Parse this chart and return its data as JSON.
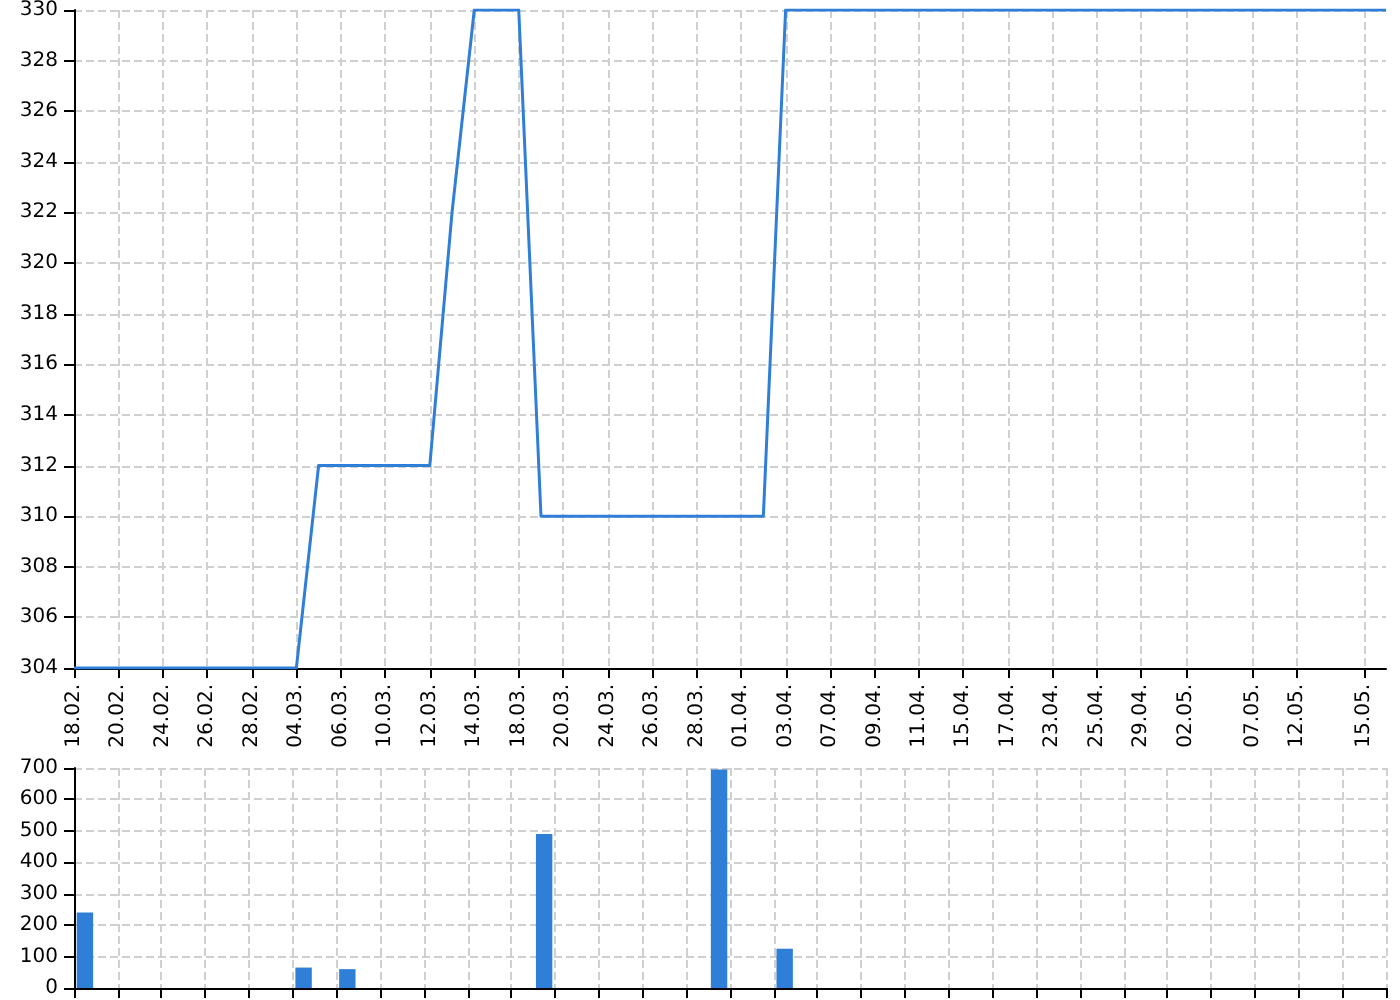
{
  "chart_data": [
    {
      "type": "line",
      "categories": [
        "18.02.",
        null,
        "20.02.",
        null,
        "24.02.",
        null,
        "26.02.",
        null,
        "28.02.",
        null,
        "04.03.",
        null,
        "06.03.",
        null,
        "10.03.",
        null,
        "12.03.",
        null,
        "14.03.",
        null,
        "18.03.",
        null,
        "20.03.",
        null,
        "24.03.",
        null,
        "26.03.",
        null,
        "28.03.",
        null,
        "01.04.",
        null,
        "03.04.",
        null,
        "07.04.",
        null,
        "09.04.",
        null,
        "11.04.",
        null,
        "15.04.",
        null,
        "17.04.",
        null,
        "23.04.",
        null,
        "25.04.",
        null,
        "29.04.",
        null,
        "02.05.",
        null,
        null,
        "07.05.",
        null,
        "12.05.",
        null,
        null,
        "15.05.",
        null
      ],
      "series": [
        {
          "color": "#2f7ed8",
          "values": [
            304,
            304,
            304,
            304,
            304,
            304,
            304,
            304,
            304,
            304,
            304,
            312,
            312,
            312,
            312,
            312,
            312,
            322,
            330,
            330,
            330,
            310,
            310,
            310,
            310,
            310,
            310,
            310,
            310,
            310,
            310,
            310,
            330,
            330,
            330,
            330,
            330,
            330,
            330,
            330,
            330,
            330,
            330,
            330,
            330,
            330,
            330,
            330,
            330,
            330,
            330,
            330,
            330,
            330,
            330,
            330,
            330,
            330,
            330,
            330
          ]
        }
      ],
      "ylim": [
        304,
        330
      ],
      "yticks": [
        304,
        306,
        308,
        310,
        312,
        314,
        316,
        318,
        320,
        322,
        324,
        326,
        328,
        330
      ],
      "grid": true,
      "marker": "none"
    },
    {
      "type": "bar",
      "categories": [
        null,
        null,
        null,
        null,
        null,
        null,
        null,
        null,
        null,
        null,
        null,
        null,
        null,
        null,
        null,
        null,
        null,
        null,
        null,
        null,
        null,
        null,
        null,
        null,
        null,
        null,
        null,
        null,
        null,
        null,
        null,
        null,
        null,
        null,
        null,
        null,
        null,
        null,
        null,
        null,
        null,
        null,
        null,
        null,
        null,
        null,
        null,
        null,
        null,
        null,
        null,
        null,
        null,
        null,
        null,
        null,
        null,
        null,
        null,
        null
      ],
      "series": [
        {
          "color": "#2f7ed8",
          "values": [
            240,
            0,
            0,
            0,
            0,
            0,
            0,
            0,
            0,
            0,
            65,
            0,
            60,
            0,
            0,
            0,
            0,
            0,
            0,
            0,
            0,
            490,
            0,
            0,
            0,
            0,
            0,
            0,
            0,
            695,
            0,
            0,
            125,
            0,
            0,
            0,
            0,
            0,
            0,
            0,
            0,
            0,
            0,
            0,
            0,
            0,
            0,
            0,
            0,
            0,
            0,
            0,
            0,
            0,
            0,
            0,
            0,
            0,
            0,
            0
          ]
        }
      ],
      "ylim": [
        0,
        700
      ],
      "yticks": [
        0,
        100,
        200,
        300,
        400,
        500,
        600,
        700
      ],
      "grid": true,
      "tick_labels": "y"
    }
  ]
}
